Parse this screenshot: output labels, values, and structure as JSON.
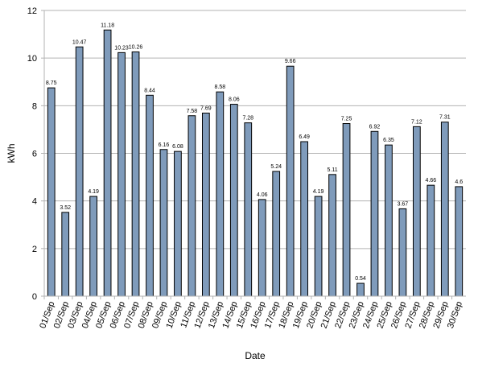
{
  "chart_data": {
    "type": "bar",
    "title": "",
    "xlabel": "Date",
    "ylabel": "kWh",
    "ylim": [
      0,
      12
    ],
    "yticks": [
      0,
      2,
      4,
      6,
      8,
      10,
      12
    ],
    "grid": true,
    "legend": "none",
    "bar_color": "#7f9bbb",
    "categories": [
      "01/Sep",
      "02/Sep",
      "03/Sep",
      "04/Sep",
      "05/Sep",
      "06/Sep",
      "07/Sep",
      "08/Sep",
      "09/Sep",
      "10/Sep",
      "11/Sep",
      "12/Sep",
      "13/Sep",
      "14/Sep",
      "15/Sep",
      "16/Sep",
      "17/Sep",
      "18/Sep",
      "19/Sep",
      "20/Sep",
      "21/Sep",
      "22/Sep",
      "23/Sep",
      "24/Sep",
      "25/Sep",
      "26/Sep",
      "27/Sep",
      "28/Sep",
      "29/Sep",
      "30/Sep"
    ],
    "values": [
      8.75,
      3.52,
      10.47,
      4.19,
      11.18,
      10.23,
      10.26,
      8.44,
      6.16,
      6.08,
      7.58,
      7.69,
      8.58,
      8.06,
      7.28,
      4.06,
      5.24,
      9.66,
      6.49,
      4.19,
      5.11,
      7.25,
      0.54,
      6.92,
      6.35,
      3.67,
      7.12,
      4.66,
      7.31,
      4.6
    ],
    "value_labels": [
      "8.75",
      "3.52",
      "10.47",
      "4.19",
      "11.18",
      "10.23",
      "10.26",
      "8.44",
      "6.16",
      "6.08",
      "7.58",
      "7.69",
      "8.58",
      "8.06",
      "7.28",
      "4.06",
      "5.24",
      "9.66",
      "6.49",
      "4.19",
      "5.11",
      "7.25",
      "0.54",
      "6.92",
      "6.35",
      "3.67",
      "7.12",
      "4.66",
      "7.31",
      "4.6"
    ]
  }
}
